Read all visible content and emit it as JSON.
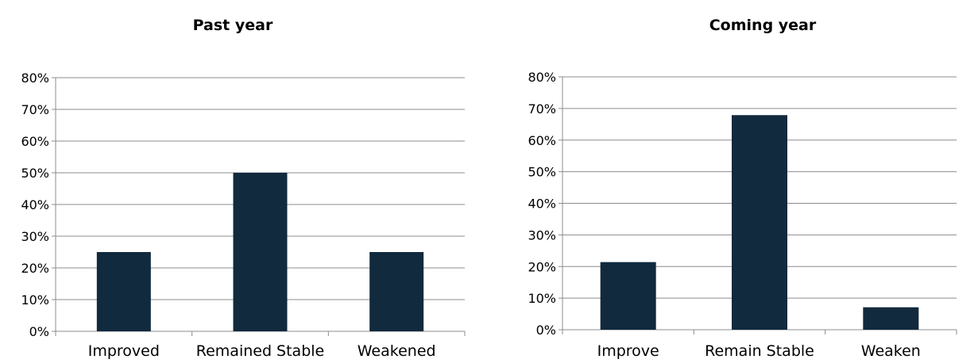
{
  "chart_data": [
    {
      "type": "bar",
      "title": "Past year",
      "categories": [
        "Improved",
        "Remained Stable",
        "Weakened"
      ],
      "values": [
        25,
        50,
        25
      ],
      "ylim": [
        0,
        80
      ],
      "yticks": [
        "0%",
        "10%",
        "20%",
        "30%",
        "40%",
        "50%",
        "60%",
        "70%",
        "80%"
      ],
      "grid": true,
      "bar_color": "#112a3e"
    },
    {
      "type": "bar",
      "title": "Coming year",
      "categories": [
        "Improve",
        "Remain Stable",
        "Weaken"
      ],
      "values": [
        21.4,
        67.9,
        7.1
      ],
      "ylim": [
        0,
        80
      ],
      "yticks": [
        "0%",
        "10%",
        "20%",
        "30%",
        "40%",
        "50%",
        "60%",
        "70%",
        "80%"
      ],
      "grid": true,
      "bar_color": "#112a3e"
    }
  ]
}
